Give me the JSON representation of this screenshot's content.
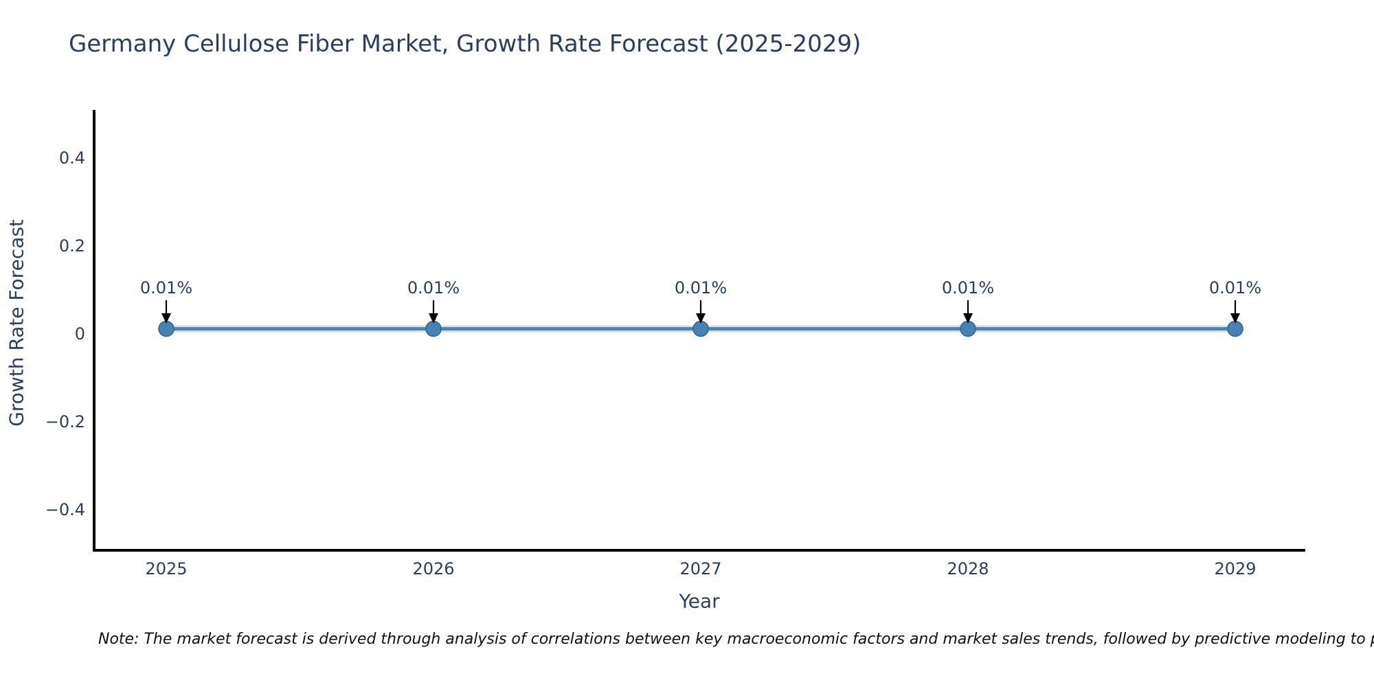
{
  "note": "Note: The market forecast is derived through analysis of correlations between key macroeconomic factors and market sales trends, followed by predictive modeling to project future sales.",
  "chart_data": {
    "type": "line",
    "title": "Germany Cellulose Fiber Market, Growth Rate Forecast (2025-2029)",
    "xlabel": "Year",
    "ylabel": "Growth Rate Forecast",
    "x": [
      "2025",
      "2026",
      "2027",
      "2028",
      "2029"
    ],
    "series": [
      {
        "name": "Growth Rate Forecast",
        "values": [
          0.01,
          0.01,
          0.01,
          0.01,
          0.01
        ]
      }
    ],
    "point_labels": [
      "0.01%",
      "0.01%",
      "0.01%",
      "0.01%",
      "0.01%"
    ],
    "unit": "%",
    "y_ticks": [
      0.4,
      0.2,
      0,
      -0.2,
      -0.4
    ],
    "y_tick_labels": [
      "0.4",
      "0.2",
      "0",
      "−0.2",
      "−0.4"
    ],
    "ylim": [
      -0.5,
      0.5
    ],
    "grid": false,
    "legend_position": "none",
    "annotation_style": "arrow-down",
    "colors": {
      "line": "#5182ae",
      "line_halo": "rgba(137,181,223,0.35)",
      "marker_fill": "#4682b4",
      "marker_edge": "#326090",
      "axis_line": "#000000",
      "tick_text": "#2a3f5f",
      "title_text": "#2a3f5f",
      "annotation_text": "#2a3f5f",
      "annotation_arrow": "#000000",
      "note_text": "#101010",
      "background": "#ffffff"
    }
  }
}
